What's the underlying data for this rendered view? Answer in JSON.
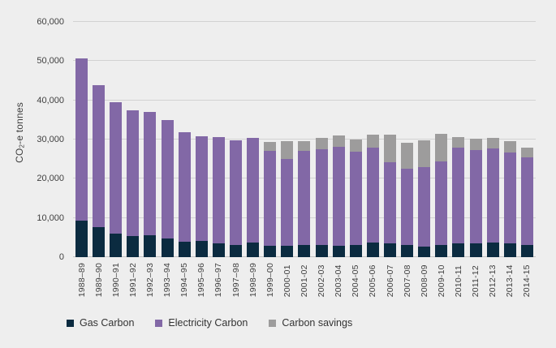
{
  "chart_data": {
    "type": "bar",
    "stacked": true,
    "title": "",
    "xlabel": "",
    "ylabel_parts": {
      "prefix": "CO",
      "sub": "2",
      "suffix": "-e tonnes"
    },
    "ylim": [
      0,
      60000
    ],
    "grid": true,
    "legend_position": "bottom",
    "y_ticks": [
      {
        "value": 0,
        "label": "0"
      },
      {
        "value": 10000,
        "label": "10,000"
      },
      {
        "value": 20000,
        "label": "20,000"
      },
      {
        "value": 30000,
        "label": "30,000"
      },
      {
        "value": 40000,
        "label": "40,000"
      },
      {
        "value": 50000,
        "label": "50,000"
      },
      {
        "value": 60000,
        "label": "60,000"
      }
    ],
    "categories": [
      "1988–89",
      "1989–90",
      "1990–91",
      "1991–92",
      "1992–93",
      "1993–94",
      "1994–95",
      "1995–96",
      "1996–97",
      "1997–98",
      "1998–99",
      "1999–00",
      "2000-01",
      "2001-02",
      "2002-03",
      "2003-04",
      "2004-05",
      "2005-06",
      "2006-07",
      "2007-08",
      "2008-09",
      "2009-10",
      "2010-11",
      "2011-12",
      "2012-13",
      "2013-14",
      "2014-15"
    ],
    "series": [
      {
        "name": "Gas Carbon",
        "color": "#0b2b40",
        "values": [
          9300,
          7600,
          6100,
          5400,
          5600,
          4700,
          4000,
          4100,
          3500,
          3200,
          3800,
          3000,
          3000,
          3100,
          3100,
          2900,
          3200,
          3800,
          3500,
          3100,
          2600,
          3200,
          3500,
          3500,
          3800,
          3600,
          3200
        ]
      },
      {
        "name": "Electricity Carbon",
        "color": "#8268a6",
        "values": [
          41400,
          36200,
          33500,
          32000,
          31400,
          30300,
          27800,
          26800,
          27100,
          26600,
          26700,
          24200,
          22000,
          24100,
          24500,
          25200,
          23700,
          24200,
          20700,
          19500,
          20300,
          21300,
          24400,
          23800,
          23900,
          23000,
          22300
        ]
      },
      {
        "name": "Carbon savings",
        "color": "#9d9c9c",
        "values": [
          0,
          0,
          0,
          0,
          0,
          0,
          0,
          0,
          0,
          0,
          0,
          2200,
          4500,
          2300,
          2800,
          3000,
          3100,
          3200,
          7100,
          6600,
          6800,
          7000,
          2700,
          2900,
          2800,
          2900,
          2500
        ]
      }
    ]
  },
  "colors": {
    "background": "#eeeeee",
    "gridline": "#d2d2d2",
    "baseline": "#c2c2c2",
    "tick_text": "#3f3f3f",
    "legend_text": "#333333"
  }
}
